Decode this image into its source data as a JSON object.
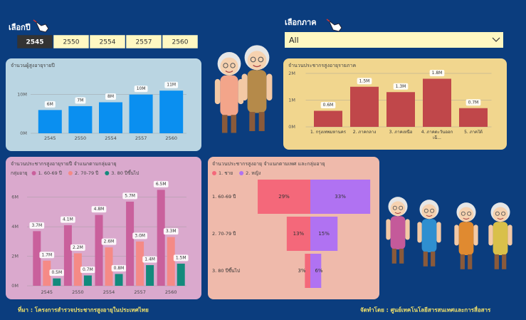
{
  "filters": {
    "year_label": "เลือกปี",
    "years": [
      "2545",
      "2550",
      "2554",
      "2557",
      "2560"
    ],
    "selected": "2545",
    "region_label": "เลือกภาค",
    "region_value": "All"
  },
  "chart_data": [
    {
      "type": "bar",
      "title": "จำนวนผู้สูงอายุรายปี",
      "categories": [
        "2545",
        "2550",
        "2554",
        "2557",
        "2560"
      ],
      "values": [
        6000000,
        7000000,
        8000000,
        10000000,
        11000000
      ],
      "value_labels": [
        "6M",
        "7M",
        "8M",
        "10M",
        "11M"
      ],
      "color": "#0a8ff0",
      "ylim": [
        0,
        16000000
      ],
      "yticks": [
        {
          "value": 0,
          "label": "0M"
        },
        {
          "value": 10000000,
          "label": "10M"
        }
      ],
      "grid": true
    },
    {
      "type": "bar",
      "title": "จำนวนประชากรสูงอายุรายภาค",
      "categories": [
        "1. กรุงเทพมหานคร",
        "2. ภาคกลาง",
        "3. ภาคเหนือ",
        "4. ภาคตะวันออกเฉี...",
        "5. ภาคใต้"
      ],
      "values": [
        600000,
        1500000,
        1300000,
        1800000,
        700000
      ],
      "value_labels": [
        "0.6M",
        "1.5M",
        "1.3M",
        "1.8M",
        "0.7M"
      ],
      "color": "#c0474a",
      "ylim": [
        0,
        2000000
      ],
      "yticks": [
        {
          "value": 0,
          "label": "0M"
        },
        {
          "value": 1000000,
          "label": "1M"
        },
        {
          "value": 2000000,
          "label": "2M"
        }
      ],
      "grid": true
    },
    {
      "type": "bar",
      "title": "จำนวนประชากรสูงอายุรายปี จำแนกตามกลุ่มอายุ",
      "legend_title": "กลุ่มอายุ",
      "categories": [
        "2545",
        "2550",
        "2554",
        "2557",
        "2560"
      ],
      "series": [
        {
          "name": "1. 60-69 ปี",
          "color": "#c9609c",
          "values": [
            3700000,
            4100000,
            4800000,
            5700000,
            6500000
          ],
          "value_labels": [
            "3.7M",
            "4.1M",
            "4.8M",
            "5.7M",
            "6.5M"
          ]
        },
        {
          "name": "2. 70-79 ปี",
          "color": "#f58a86",
          "values": [
            1700000,
            2200000,
            2600000,
            3000000,
            3300000
          ],
          "value_labels": [
            "1.7M",
            "2.2M",
            "2.6M",
            "3.0M",
            "3.3M"
          ]
        },
        {
          "name": "3. 80 ปีขึ้นไป",
          "color": "#138a7c",
          "values": [
            500000,
            700000,
            800000,
            1400000,
            1500000
          ],
          "value_labels": [
            "0.5M",
            "0.7M",
            "0.8M",
            "1.4M",
            "1.5M"
          ]
        }
      ],
      "ylim": [
        0,
        7000000
      ],
      "yticks": [
        {
          "value": 0,
          "label": "0M"
        },
        {
          "value": 2000000,
          "label": "2M"
        },
        {
          "value": 4000000,
          "label": "4M"
        },
        {
          "value": 6000000,
          "label": "6M"
        }
      ],
      "grid": true
    },
    {
      "type": "butterfly",
      "title": "จำนวนประชากรสูงอายุ จำแนกตามเพศ และกลุ่มอายุ",
      "categories": [
        "1. 60-69 ปี",
        "2. 70-79 ปี",
        "3. 80 ปีขึ้นไป"
      ],
      "series": [
        {
          "name": "1. ชาย",
          "color": "#f4687a",
          "values": [
            29,
            13,
            3
          ],
          "value_labels": [
            "29%",
            "13%",
            "3%"
          ]
        },
        {
          "name": "2. หญิง",
          "color": "#b072f2",
          "values": [
            33,
            15,
            6
          ],
          "value_labels": [
            "33%",
            "15%",
            "6%"
          ]
        }
      ]
    }
  ],
  "footer": {
    "source": "ที่มา : โครงการสำรวจประชากรสูงอายุในประเทศไทย",
    "credit": "จัดทำโดย : ศูนย์เทคโนโลยีสารสนเทศและการสื่อสาร"
  }
}
